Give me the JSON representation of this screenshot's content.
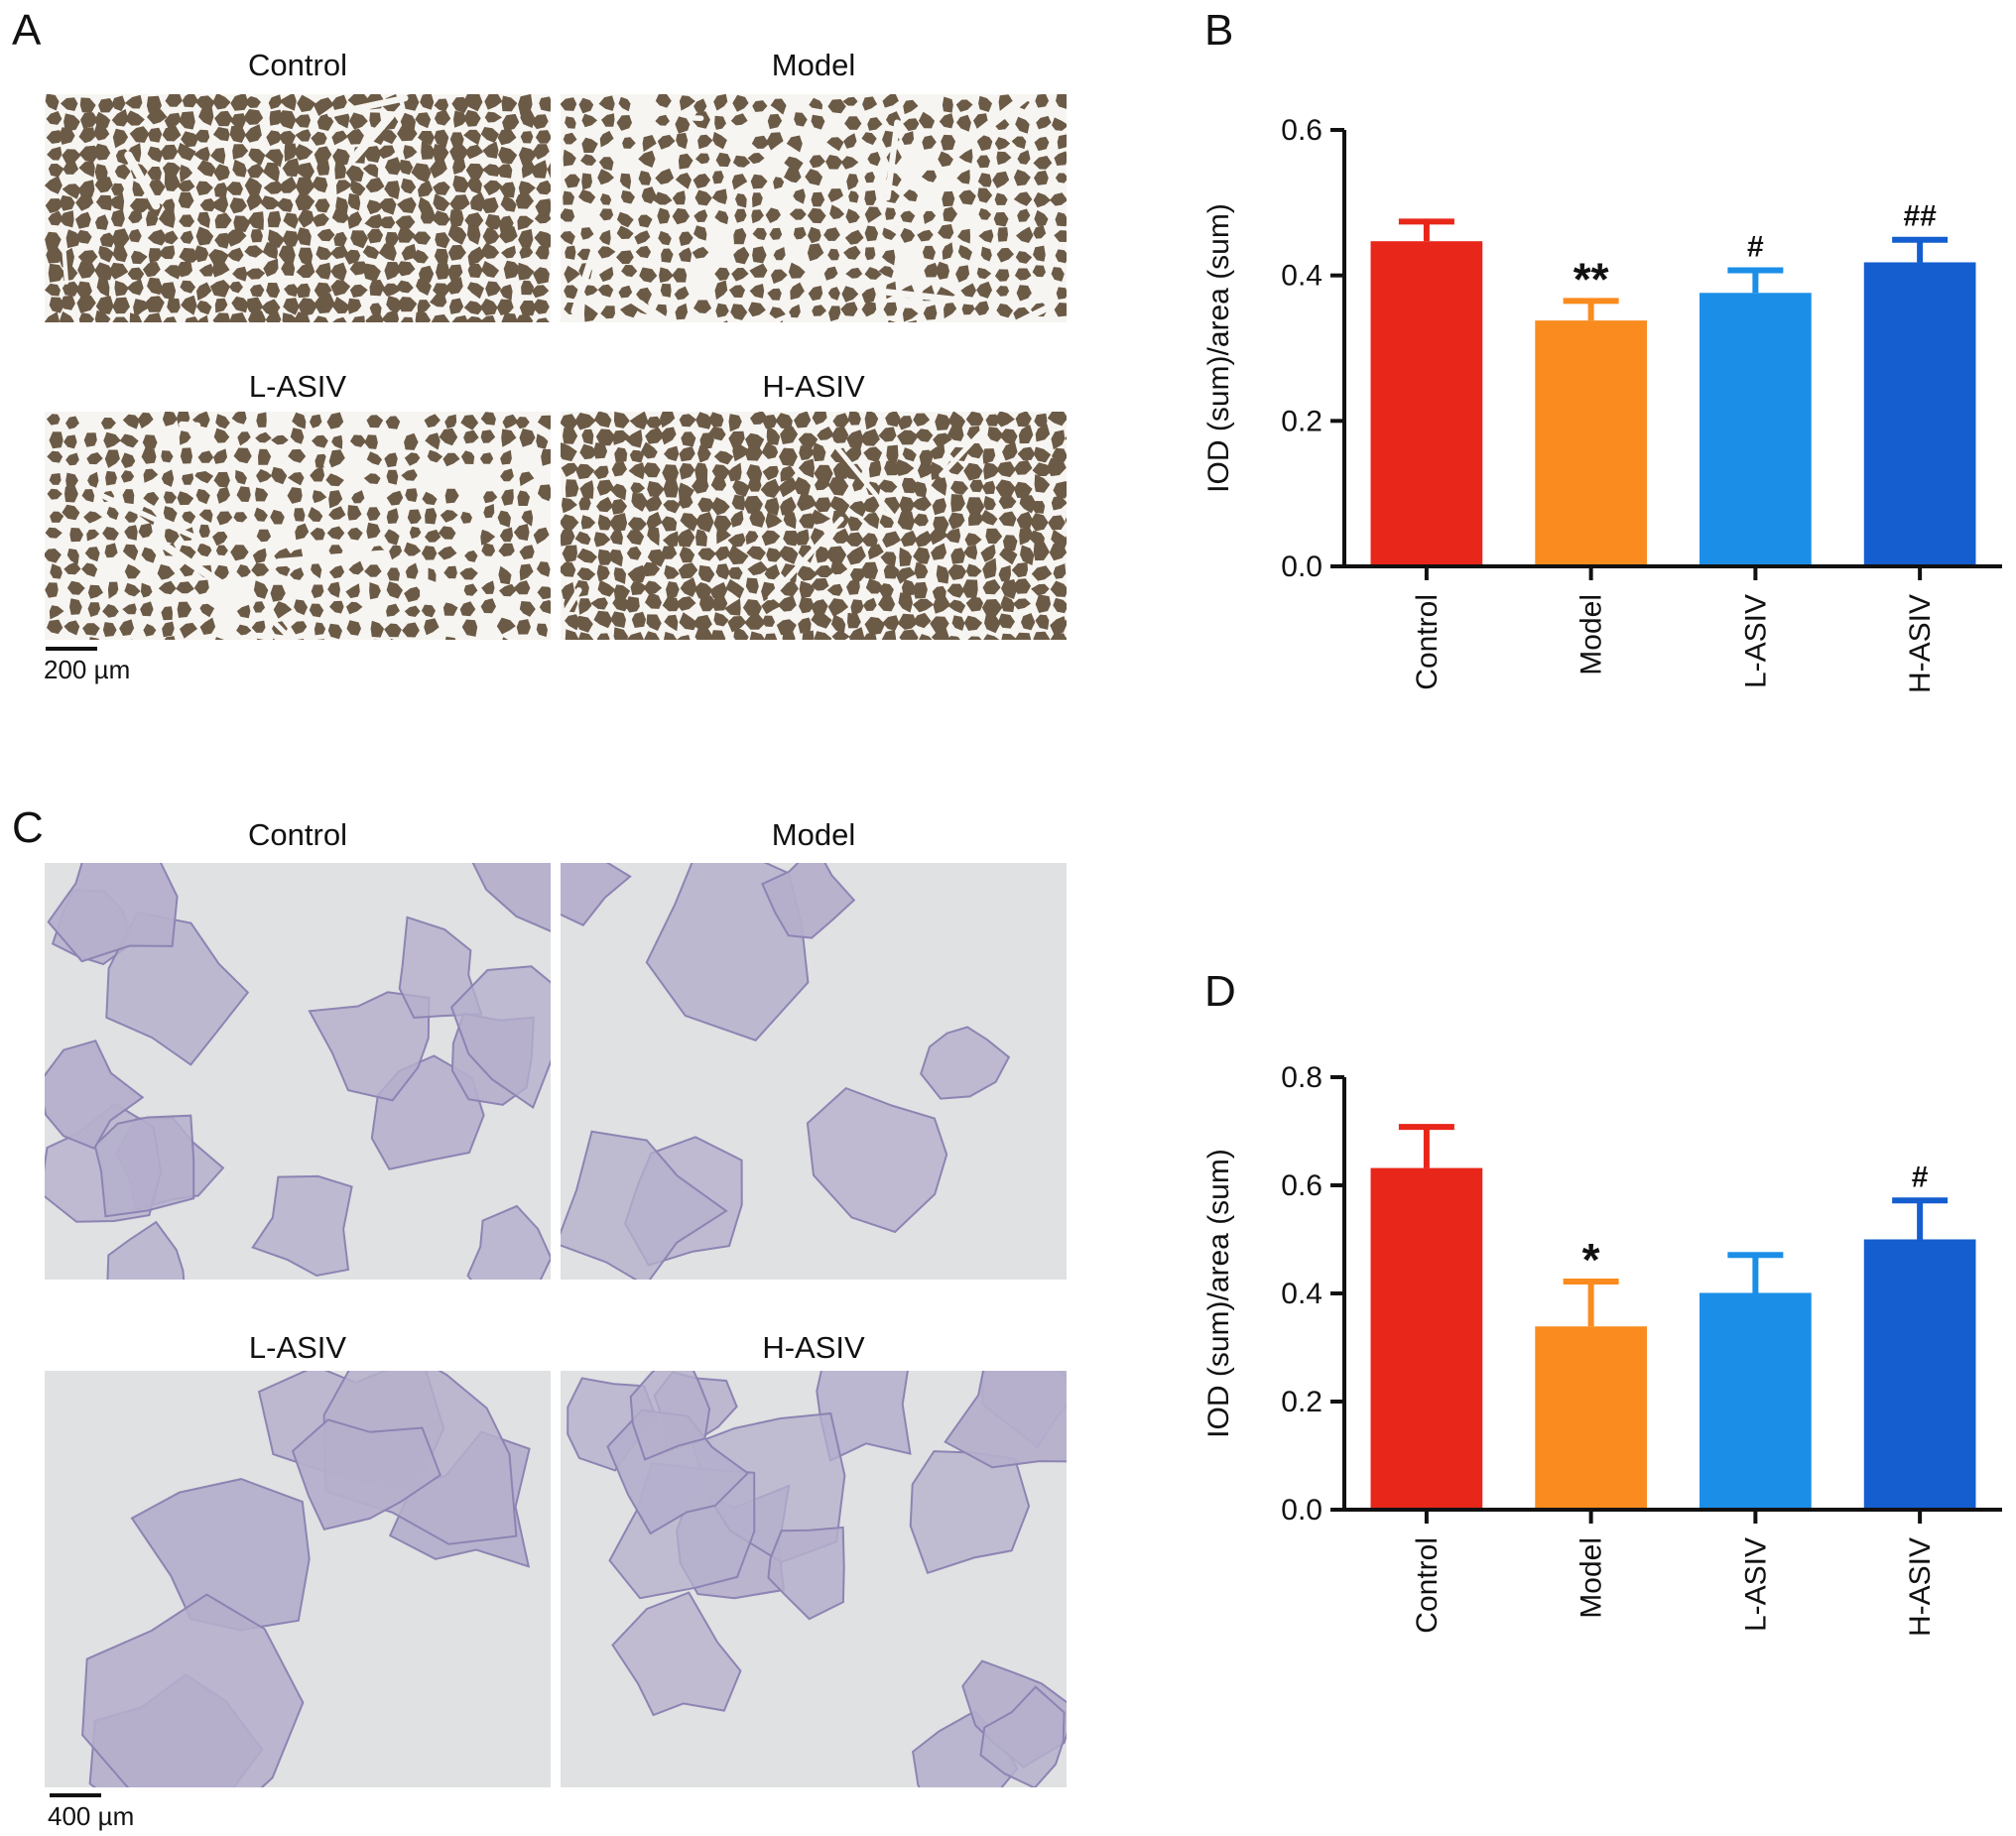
{
  "panels": {
    "A": {
      "letter": "A",
      "images": [
        {
          "label": "Control"
        },
        {
          "label": "Model"
        },
        {
          "label": "L-ASIV"
        },
        {
          "label": "H-ASIV"
        }
      ],
      "scale_text": "200  µm",
      "stain_color": "#6b5a46",
      "background_color": "#f7f5f2"
    },
    "C": {
      "letter": "C",
      "images": [
        {
          "label": "Control"
        },
        {
          "label": "Model"
        },
        {
          "label": "L-ASIV"
        },
        {
          "label": "H-ASIV"
        }
      ],
      "scale_text": "400  µm",
      "stain_color": "#b5afcc",
      "background_color": "#dfe1e2"
    },
    "B": {
      "letter": "B"
    },
    "D": {
      "letter": "D"
    }
  },
  "chart_data": [
    {
      "panel": "B",
      "type": "bar",
      "categories": [
        "Control",
        "Model",
        "L-ASIV",
        "H-ASIV"
      ],
      "values": [
        0.447,
        0.338,
        0.376,
        0.418
      ],
      "errors": [
        0.027,
        0.027,
        0.031,
        0.031
      ],
      "annotations": [
        "",
        "**",
        "#",
        "##"
      ],
      "colors": [
        "#e8261a",
        "#f98b1f",
        "#1b8ee8",
        "#145ecf"
      ],
      "ylabel": "IOD (sum)/area (sum)",
      "ylim": [
        0,
        0.6
      ],
      "yticks": [
        "0.0",
        "0.2",
        "0.4",
        "0.6"
      ]
    },
    {
      "panel": "D",
      "type": "bar",
      "categories": [
        "Control",
        "Model",
        "L-ASIV",
        "H-ASIV"
      ],
      "values": [
        0.632,
        0.339,
        0.401,
        0.5
      ],
      "errors": [
        0.076,
        0.083,
        0.07,
        0.072
      ],
      "annotations": [
        "",
        "*",
        "",
        "#"
      ],
      "colors": [
        "#e8261a",
        "#f98b1f",
        "#1b8ee8",
        "#145ecf"
      ],
      "ylabel": "IOD (sum)/area (sum)",
      "ylim": [
        0,
        0.8
      ],
      "yticks": [
        "0.0",
        "0.2",
        "0.4",
        "0.6",
        "0.8"
      ]
    }
  ]
}
